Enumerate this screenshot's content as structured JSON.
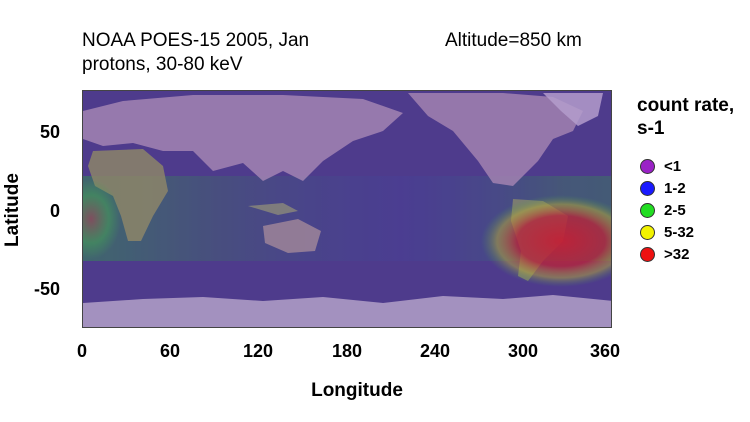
{
  "title": {
    "line1": "NOAA POES-15  2005, Jan",
    "line2": "protons, 30-80 keV",
    "altitude": "Altitude=850 km"
  },
  "axes": {
    "xlabel": "Longitude",
    "ylabel": "Latitude",
    "xticks": [
      "0",
      "60",
      "120",
      "180",
      "240",
      "300",
      "360"
    ],
    "yticks": [
      "50",
      "0",
      "-50"
    ],
    "xlim": [
      0,
      360
    ],
    "ylim": [
      -72,
      72
    ]
  },
  "legend": {
    "title_line1": "count rate,",
    "title_line2": "s-1",
    "items": [
      {
        "label": "<1",
        "color": "#9a22c6"
      },
      {
        "label": "1-2",
        "color": "#1a1aff"
      },
      {
        "label": "2-5",
        "color": "#22dd22"
      },
      {
        "label": "5-32",
        "color": "#f2f200"
      },
      {
        "label": ">32",
        "color": "#ee1111"
      }
    ]
  },
  "map": {
    "background_color": "#4a3a86",
    "features": [
      {
        "kind": "south-atlantic-anomaly",
        "level": ">32",
        "lon": 325,
        "lat": -30
      },
      {
        "kind": "equatorial-belt",
        "level": "2-5",
        "lon_range": [
          0,
          40
        ],
        "lat": 0
      }
    ]
  }
}
